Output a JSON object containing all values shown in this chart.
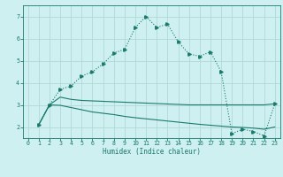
{
  "xlabel": "Humidex (Indice chaleur)",
  "bg_color": "#cff0f0",
  "grid_color": "#b0d8d8",
  "line_color": "#1a7a6e",
  "xlim": [
    -0.5,
    23.5
  ],
  "ylim": [
    1.5,
    7.5
  ],
  "yticks": [
    2,
    3,
    4,
    5,
    6,
    7
  ],
  "xticks": [
    0,
    1,
    2,
    3,
    4,
    5,
    6,
    7,
    8,
    9,
    10,
    11,
    12,
    13,
    14,
    15,
    16,
    17,
    18,
    19,
    20,
    21,
    22,
    23
  ],
  "series1_x": [
    1,
    2,
    3,
    4,
    5,
    6,
    7,
    8,
    9,
    10,
    11,
    12,
    13,
    14,
    15,
    16,
    17,
    18,
    19,
    20,
    21,
    22,
    23
  ],
  "series1_y": [
    2.1,
    3.0,
    3.7,
    3.85,
    4.3,
    4.5,
    4.85,
    5.35,
    5.5,
    6.5,
    7.0,
    6.5,
    6.65,
    5.85,
    5.3,
    5.2,
    5.4,
    4.5,
    1.7,
    1.9,
    1.8,
    1.6,
    3.05
  ],
  "series2_x": [
    1,
    2,
    3,
    4,
    5,
    6,
    7,
    8,
    9,
    10,
    11,
    12,
    13,
    14,
    15,
    16,
    17,
    18,
    19,
    20,
    21,
    22,
    23
  ],
  "series2_y": [
    2.1,
    3.0,
    3.35,
    3.25,
    3.2,
    3.18,
    3.16,
    3.14,
    3.12,
    3.1,
    3.08,
    3.06,
    3.04,
    3.02,
    3.0,
    3.0,
    3.0,
    3.0,
    3.0,
    3.0,
    3.0,
    3.0,
    3.05
  ],
  "series3_x": [
    1,
    2,
    3,
    4,
    5,
    6,
    7,
    8,
    9,
    10,
    11,
    12,
    13,
    14,
    15,
    16,
    17,
    18,
    19,
    20,
    21,
    22,
    23
  ],
  "series3_y": [
    2.1,
    3.0,
    2.98,
    2.88,
    2.78,
    2.68,
    2.62,
    2.56,
    2.48,
    2.42,
    2.37,
    2.32,
    2.27,
    2.22,
    2.17,
    2.12,
    2.08,
    2.04,
    2.0,
    1.98,
    1.95,
    1.9,
    2.0
  ]
}
